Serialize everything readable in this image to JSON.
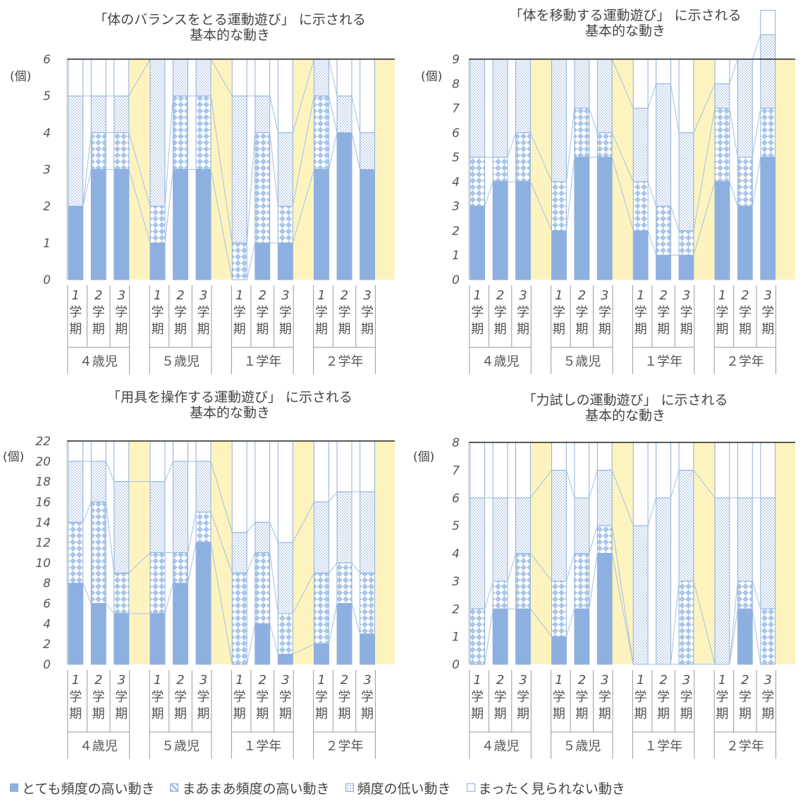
{
  "colors": {
    "very_high": "#8db0e0",
    "fairly_high": "#a9c6ea",
    "low": "#9fbbe0",
    "not_seen": "#ffffff",
    "bar_border": "#8fb0d8",
    "band": "#fdf3bf"
  },
  "legend": [
    "とても頻度の高い動き",
    "まあまあ頻度の高い動き",
    "頻度の低い動き",
    "まったく見られない動き"
  ],
  "chart_data": [
    {
      "type": "bar",
      "stacked": true,
      "title": [
        "「体のバランスをとる運動遊び」 に示される",
        "基本的な動き"
      ],
      "ylabel": "(個)",
      "ylim": [
        0,
        6
      ],
      "yticks": [
        0,
        1,
        2,
        3,
        4,
        5,
        6
      ],
      "groups": [
        "４歳児",
        "５歳児",
        "１学年",
        "２学年"
      ],
      "terms": [
        "1\n学\n期",
        "2\n学\n期",
        "3\n学\n期"
      ],
      "series_names": [
        "とても頻度の高い動き",
        "まあまあ頻度の高い動き",
        "頻度の低い動き",
        "まったく見られない動き"
      ],
      "values": [
        [
          [
            2,
            0,
            3,
            1
          ],
          [
            3,
            1,
            1,
            1
          ],
          [
            3,
            1,
            1,
            1
          ]
        ],
        [
          [
            1,
            1,
            4,
            0
          ],
          [
            3,
            2,
            1,
            0
          ],
          [
            3,
            2,
            1,
            0
          ]
        ],
        [
          [
            0,
            1,
            4,
            1
          ],
          [
            1,
            3,
            1,
            1
          ],
          [
            1,
            1,
            2,
            2
          ]
        ],
        [
          [
            3,
            2,
            1,
            0
          ],
          [
            4,
            0,
            1,
            1
          ],
          [
            3,
            0,
            1,
            2
          ]
        ]
      ]
    },
    {
      "type": "bar",
      "stacked": true,
      "title": [
        "「体を移動する運動遊び」 に示される",
        "基本的な動き"
      ],
      "ylabel": "(個)",
      "ylim": [
        0,
        9
      ],
      "yticks": [
        0,
        1,
        2,
        3,
        4,
        5,
        6,
        7,
        8,
        9
      ],
      "groups": [
        "４歳児",
        "５歳児",
        "１学年",
        "２学年"
      ],
      "terms": [
        "1\n学\n期",
        "2\n学\n期",
        "3\n学\n期"
      ],
      "series_names": [
        "とても頻度の高い動き",
        "まあまあ頻度の高い動き",
        "頻度の低い動き",
        "まったく見られない動き"
      ],
      "values": [
        [
          [
            3,
            2,
            4,
            0
          ],
          [
            4,
            1,
            4,
            0
          ],
          [
            4,
            2,
            3,
            0
          ]
        ],
        [
          [
            2,
            2,
            5,
            0
          ],
          [
            5,
            2,
            2,
            0
          ],
          [
            5,
            1,
            3,
            0
          ]
        ],
        [
          [
            2,
            2,
            3,
            2
          ],
          [
            1,
            2,
            5,
            1
          ],
          [
            1,
            1,
            4,
            3
          ]
        ],
        [
          [
            4,
            3,
            1,
            1
          ],
          [
            3,
            2,
            4,
            0
          ],
          [
            5,
            2,
            3,
            1
          ]
        ]
      ]
    },
    {
      "type": "bar",
      "stacked": true,
      "title": [
        "「用具を操作する運動遊び」 に示される",
        "基本的な動き"
      ],
      "ylabel": "(個)",
      "ylim": [
        0,
        22
      ],
      "yticks": [
        0,
        2,
        4,
        6,
        8,
        10,
        12,
        14,
        16,
        18,
        20,
        22
      ],
      "groups": [
        "４歳児",
        "５歳児",
        "１学年",
        "２学年"
      ],
      "terms": [
        "1\n学\n期",
        "2\n学\n期",
        "3\n学\n期"
      ],
      "series_names": [
        "とても頻度の高い動き",
        "まあまあ頻度の高い動き",
        "頻度の低い動き",
        "まったく見られない動き"
      ],
      "values": [
        [
          [
            8,
            6,
            6,
            2
          ],
          [
            6,
            10,
            4,
            2
          ],
          [
            5,
            4,
            9,
            4
          ]
        ],
        [
          [
            5,
            6,
            7,
            4
          ],
          [
            8,
            3,
            9,
            2
          ],
          [
            12,
            3,
            5,
            2
          ]
        ],
        [
          [
            0,
            9,
            4,
            9
          ],
          [
            4,
            7,
            3,
            8
          ],
          [
            1,
            4,
            7,
            10
          ]
        ],
        [
          [
            2,
            7,
            7,
            6
          ],
          [
            6,
            4,
            7,
            5
          ],
          [
            3,
            6,
            8,
            5
          ]
        ]
      ]
    },
    {
      "type": "bar",
      "stacked": true,
      "title": [
        "「力試しの運動遊び」 に示される",
        "基本的な動き"
      ],
      "ylabel": "(個)",
      "ylim": [
        0,
        8
      ],
      "yticks": [
        0,
        1,
        2,
        3,
        4,
        5,
        6,
        7,
        8
      ],
      "groups": [
        "４歳児",
        "５歳児",
        "１学年",
        "２学年"
      ],
      "terms": [
        "1\n学\n期",
        "2\n学\n期",
        "3\n学\n期"
      ],
      "series_names": [
        "とても頻度の高い動き",
        "まあまあ頻度の高い動き",
        "頻度の低い動き",
        "まったく見られない動き"
      ],
      "values": [
        [
          [
            0,
            2,
            4,
            2
          ],
          [
            2,
            1,
            3,
            2
          ],
          [
            2,
            2,
            2,
            2
          ]
        ],
        [
          [
            1,
            2,
            4,
            1
          ],
          [
            2,
            2,
            2,
            2
          ],
          [
            4,
            1,
            2,
            1
          ]
        ],
        [
          [
            0,
            0,
            5,
            3
          ],
          [
            0,
            0,
            6,
            2
          ],
          [
            0,
            3,
            4,
            1
          ]
        ],
        [
          [
            0,
            0,
            6,
            2
          ],
          [
            2,
            1,
            3,
            2
          ],
          [
            0,
            2,
            4,
            2
          ]
        ]
      ]
    }
  ]
}
